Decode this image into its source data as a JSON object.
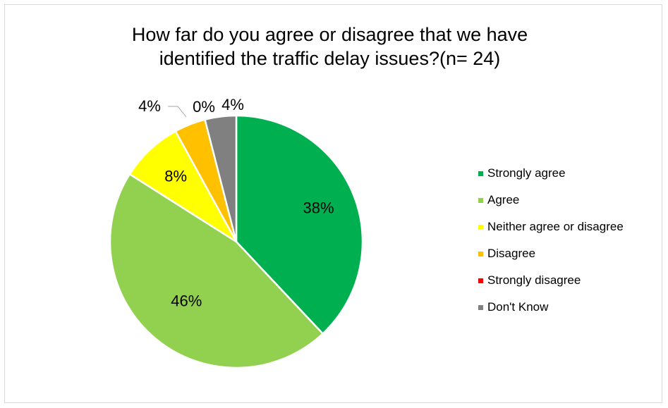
{
  "chart_data": {
    "type": "pie",
    "title_lines": [
      "How far do you agree or disagree that we have",
      "identified the traffic delay issues?(n= 24)"
    ],
    "legend_position": "right",
    "slices": [
      {
        "label": "Strongly agree",
        "value": 38,
        "display": "38%",
        "color": "#00b050"
      },
      {
        "label": "Agree",
        "value": 46,
        "display": "46%",
        "color": "#92d050"
      },
      {
        "label": "Neither agree or disagree",
        "value": 8,
        "display": "8%",
        "color": "#ffff00"
      },
      {
        "label": "Disagree",
        "value": 4,
        "display": "4%",
        "color": "#ffc000"
      },
      {
        "label": "Strongly disagree",
        "value": 0,
        "display": "0%",
        "color": "#ff0000"
      },
      {
        "label": "Don't Know",
        "value": 4,
        "display": "4%",
        "color": "#808080"
      }
    ]
  }
}
